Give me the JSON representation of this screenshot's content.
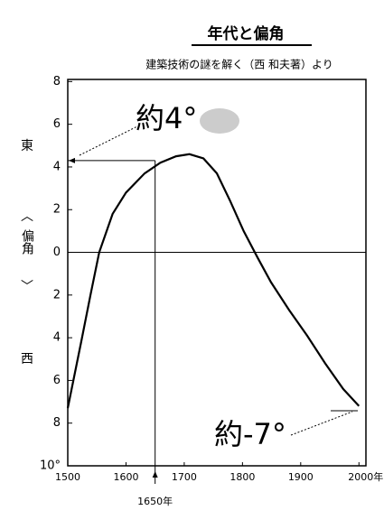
{
  "chart_data": {
    "type": "line",
    "title": "年代と偏角",
    "subtitle": "建築技術の謎を解く（西 和夫著）より",
    "y_label_top": "東",
    "y_label_mid": "偏角",
    "y_label_bottom": "西",
    "x": [
      1500,
      1523,
      1539,
      1554,
      1577,
      1600,
      1632,
      1659,
      1686,
      1709,
      1733,
      1756,
      1779,
      1802,
      1826,
      1849,
      1880,
      1911,
      1942,
      1973,
      2000
    ],
    "series": [
      {
        "color": "#000000",
        "values": [
          -7.3,
          -4.2,
          -2.0,
          0,
          1.8,
          2.8,
          3.7,
          4.2,
          4.5,
          4.6,
          4.4,
          3.7,
          2.4,
          1.0,
          -0.25,
          -1.4,
          -2.7,
          -3.9,
          -5.2,
          -6.4,
          -7.2
        ]
      }
    ],
    "xlim": [
      1500,
      2012
    ],
    "xticks": [
      1500,
      1600,
      1700,
      1800,
      1900,
      {
        "value": 2000,
        "label": "2000年"
      }
    ],
    "ylim": [
      -10,
      8.1
    ],
    "yticks": [
      {
        "value": 8,
        "label": "8"
      },
      6,
      4,
      2,
      0,
      {
        "value": -2,
        "label": "2"
      },
      {
        "value": -4,
        "label": "4"
      },
      {
        "value": -6,
        "label": "6"
      },
      {
        "value": -8,
        "label": "8"
      },
      {
        "value": -10,
        "label": "10°"
      }
    ],
    "marker": {
      "x": 1650,
      "y": 4.3,
      "label": "1650年"
    },
    "annotations": [
      "約4°",
      "約-7°"
    ]
  }
}
